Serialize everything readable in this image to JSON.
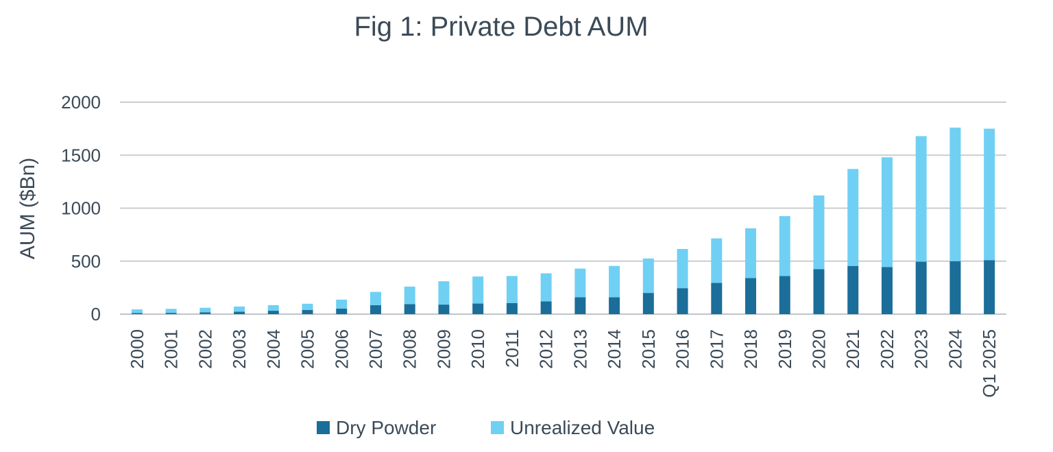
{
  "chart_data": {
    "type": "bar",
    "stacked": true,
    "title": "Fig 1: Private Debt AUM",
    "ylabel": "AUM ($Bn)",
    "xlabel": "",
    "ylim": [
      0,
      2000
    ],
    "yticks": [
      0,
      500,
      1000,
      1500,
      2000
    ],
    "grid": true,
    "legend_position": "bottom",
    "categories": [
      "2000",
      "2001",
      "2002",
      "2003",
      "2004",
      "2005",
      "2006",
      "2007",
      "2008",
      "2009",
      "2010",
      "2011",
      "2012",
      "2013",
      "2014",
      "2015",
      "2016",
      "2017",
      "2018",
      "2019",
      "2020",
      "2021",
      "2022",
      "2023",
      "2024",
      "Q1 2025"
    ],
    "series": [
      {
        "name": "Dry Powder",
        "color": "#1a6e99",
        "values": [
          10,
          12,
          18,
          24,
          32,
          40,
          52,
          85,
          95,
          90,
          100,
          105,
          120,
          160,
          160,
          200,
          245,
          295,
          340,
          360,
          425,
          455,
          445,
          495,
          500,
          510
        ]
      },
      {
        "name": "Unrealized Value",
        "color": "#6fd0f4",
        "values": [
          35,
          38,
          42,
          48,
          53,
          58,
          85,
          125,
          165,
          220,
          255,
          255,
          265,
          270,
          295,
          325,
          370,
          420,
          470,
          565,
          695,
          915,
          1035,
          1185,
          1260,
          1240
        ]
      }
    ]
  }
}
